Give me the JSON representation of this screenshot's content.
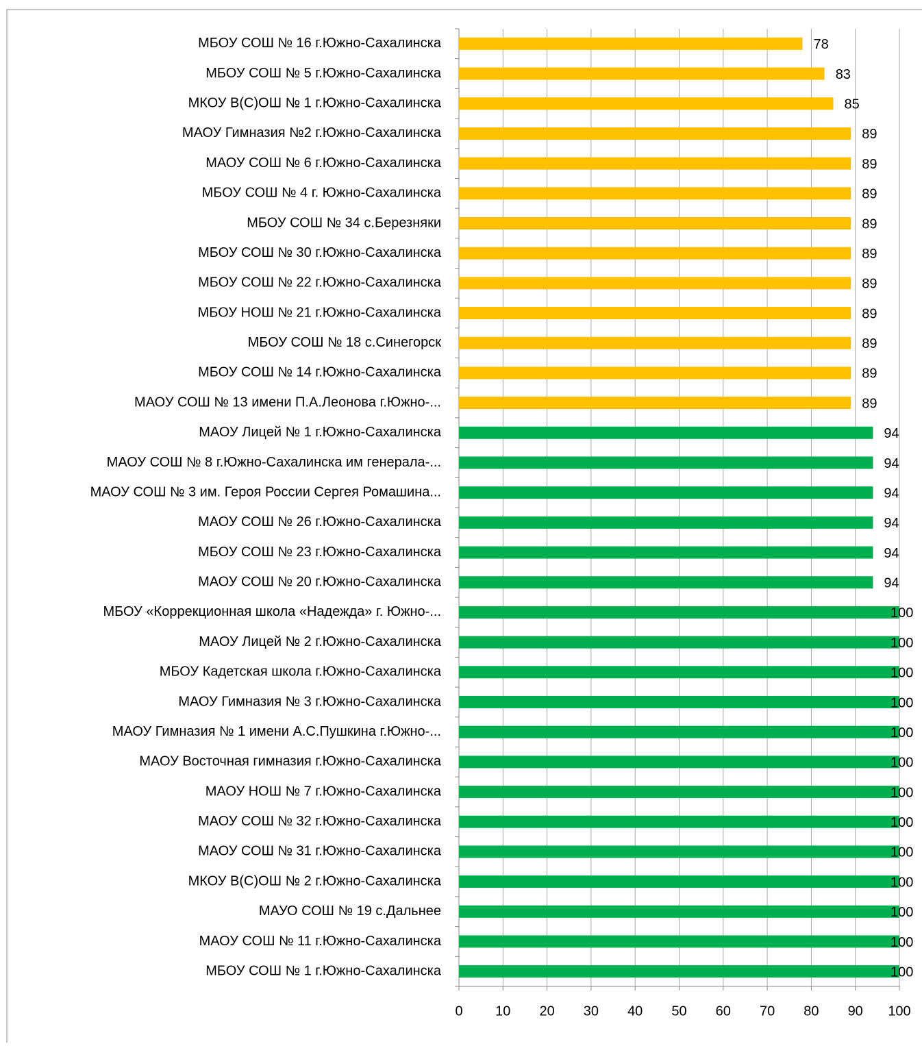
{
  "chart_data": {
    "type": "barh",
    "categories": [
      "МБОУ СОШ № 16 г.Южно-Сахалинска",
      "МБОУ СОШ № 5 г.Южно-Сахалинска",
      "МКОУ В(С)ОШ № 1 г.Южно-Сахалинска",
      "МАОУ Гимназия №2 г.Южно-Сахалинска",
      "МАОУ СОШ № 6 г.Южно-Сахалинска",
      "МБОУ СОШ № 4 г. Южно-Сахалинска",
      "МБОУ СОШ № 34 с.Березняки",
      "МБОУ СОШ № 30 г.Южно-Сахалинска",
      "МБОУ СОШ № 22 г.Южно-Сахалинска",
      "МБОУ НОШ № 21 г.Южно-Сахалинска",
      "МБОУ СОШ № 18 с.Синегорск",
      "МБОУ СОШ № 14 г.Южно-Сахалинска",
      "МАОУ СОШ № 13 имени П.А.Леонова г.Южно-...",
      "МАОУ Лицей № 1 г.Южно-Сахалинска",
      "МАОУ СОШ № 8 г.Южно-Сахалинска им генерала-...",
      "МАОУ СОШ № 3 им. Героя России Сергея Ромашина...",
      "МАОУ СОШ № 26 г.Южно-Сахалинска",
      "МБОУ СОШ № 23 г.Южно-Сахалинска",
      "МАОУ СОШ № 20 г.Южно-Сахалинска",
      "МБОУ «Коррекционная школа «Надежда» г. Южно-...",
      "МАОУ Лицей № 2 г.Южно-Сахалинска",
      "МБОУ Кадетская школа г.Южно-Сахалинска",
      "МАОУ Гимназия № 3 г.Южно-Сахалинска",
      "МАОУ Гимназия № 1 имени А.С.Пушкина г.Южно-...",
      "МАОУ Восточная гимназия г.Южно-Сахалинска",
      "МАОУ НОШ № 7 г.Южно-Сахалинска",
      "МАОУ СОШ № 32 г.Южно-Сахалинска",
      "МАОУ СОШ № 31 г.Южно-Сахалинска",
      "МКОУ В(С)ОШ № 2 г.Южно-Сахалинска",
      "МАУО СОШ № 19 с.Дальнее",
      "МАОУ СОШ № 11 г.Южно-Сахалинска",
      "МБОУ СОШ № 1 г.Южно-Сахалинска"
    ],
    "values": [
      78,
      83,
      85,
      89,
      89,
      89,
      89,
      89,
      89,
      89,
      89,
      89,
      89,
      94,
      94,
      94,
      94,
      94,
      94,
      100,
      100,
      100,
      100,
      100,
      100,
      100,
      100,
      100,
      100,
      100,
      100,
      100
    ],
    "colors": [
      "#FFC000",
      "#FFC000",
      "#FFC000",
      "#FFC000",
      "#FFC000",
      "#FFC000",
      "#FFC000",
      "#FFC000",
      "#FFC000",
      "#FFC000",
      "#FFC000",
      "#FFC000",
      "#FFC000",
      "#00B050",
      "#00B050",
      "#00B050",
      "#00B050",
      "#00B050",
      "#00B050",
      "#00B050",
      "#00B050",
      "#00B050",
      "#00B050",
      "#00B050",
      "#00B050",
      "#00B050",
      "#00B050",
      "#00B050",
      "#00B050",
      "#00B050",
      "#00B050",
      "#00B050"
    ],
    "xlim": [
      0,
      100
    ],
    "xticks": [
      0,
      10,
      20,
      30,
      40,
      50,
      60,
      70,
      80,
      90,
      100
    ],
    "grid": true
  }
}
